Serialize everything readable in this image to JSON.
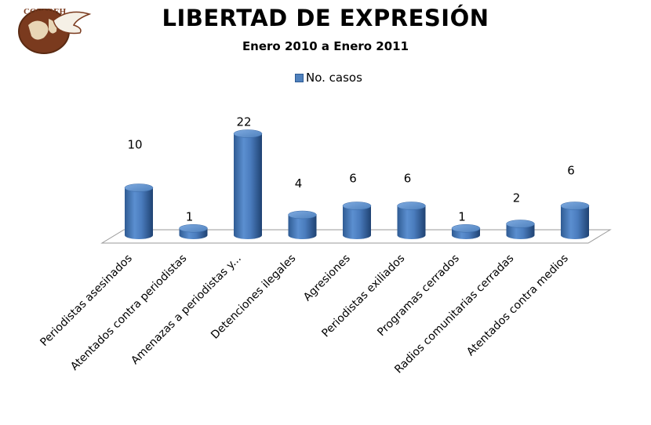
{
  "logo": {
    "text": "COFADEH"
  },
  "chart_data": {
    "type": "bar",
    "title": "LIBERTAD DE EXPRESIÓN",
    "subtitle": "Enero 2010 a Enero 2011",
    "legend_position": "top",
    "categories": [
      "Periodistas asesinados",
      "Atentados contra periodistas",
      "Amenazas a periodistas y...",
      "Detenciones ilegales",
      "Agresiones",
      "Periodistas exiliados",
      "Programas cerrados",
      "Radios comunitarias cerradas",
      "Atentados contra medios"
    ],
    "series": [
      {
        "name": "No. casos",
        "values": [
          10,
          1,
          22,
          4,
          6,
          6,
          1,
          2,
          6
        ],
        "color": "#4f81bd"
      }
    ],
    "ylim": [
      0,
      22
    ],
    "grid": false
  }
}
